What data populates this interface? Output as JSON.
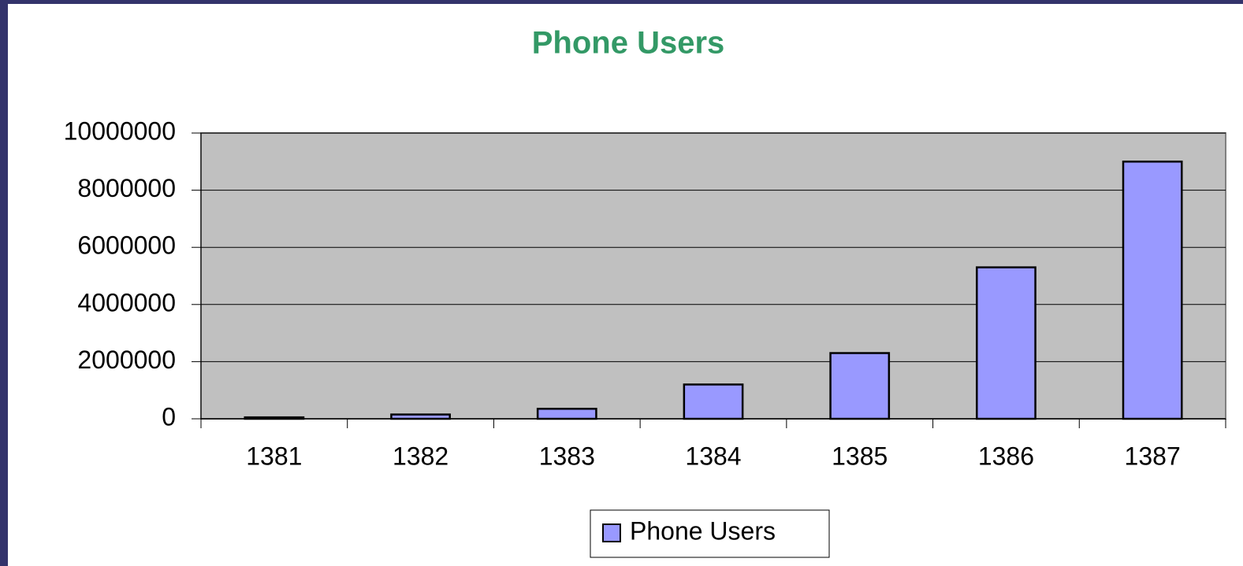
{
  "chart_data": {
    "type": "bar",
    "title": "Phone Users",
    "categories": [
      "1381",
      "1382",
      "1383",
      "1384",
      "1385",
      "1386",
      "1387"
    ],
    "series": [
      {
        "name": "Phone Users",
        "color": "#9999ff",
        "values": [
          50000,
          150000,
          350000,
          1200000,
          2300000,
          5300000,
          9000000
        ]
      }
    ],
    "ylim": [
      0,
      10000000
    ],
    "yticks": [
      0,
      2000000,
      4000000,
      6000000,
      8000000,
      10000000
    ],
    "grid": true,
    "legend": "bottom"
  }
}
